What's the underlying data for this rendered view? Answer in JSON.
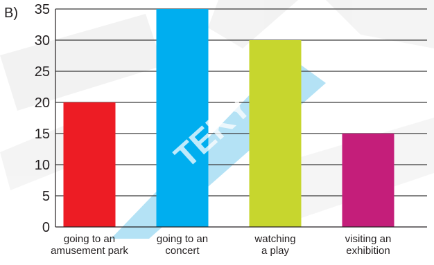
{
  "panel_label": "B)",
  "chart_data": {
    "type": "bar",
    "categories": [
      [
        "going to an",
        "amusement park"
      ],
      [
        "going to an",
        "concert"
      ],
      [
        "watching",
        "a play"
      ],
      [
        "visiting an",
        "exhibition"
      ]
    ],
    "values": [
      20,
      35,
      30,
      15
    ],
    "colors": [
      "#ed1c24",
      "#00aeef",
      "#c7d62e",
      "#c41e7a"
    ],
    "ylim": [
      0,
      35
    ],
    "yticks": [
      0,
      5,
      10,
      15,
      20,
      25,
      30,
      35
    ],
    "grid": true,
    "title": "",
    "xlabel": "",
    "ylabel": ""
  },
  "watermark": {
    "text": "TEKY",
    "color": "#29abe2"
  }
}
